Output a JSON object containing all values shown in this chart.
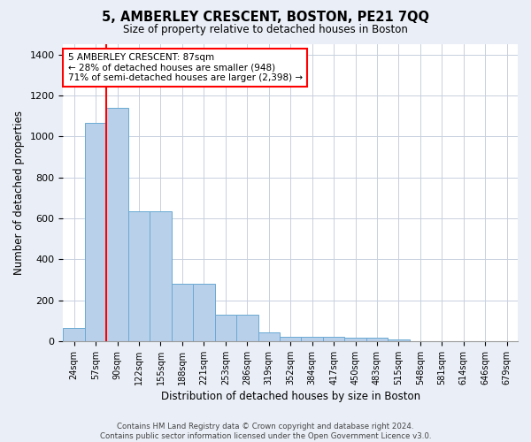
{
  "title": "5, AMBERLEY CRESCENT, BOSTON, PE21 7QQ",
  "subtitle": "Size of property relative to detached houses in Boston",
  "xlabel": "Distribution of detached houses by size in Boston",
  "ylabel": "Number of detached properties",
  "categories": [
    "24sqm",
    "57sqm",
    "90sqm",
    "122sqm",
    "155sqm",
    "188sqm",
    "221sqm",
    "253sqm",
    "286sqm",
    "319sqm",
    "352sqm",
    "384sqm",
    "417sqm",
    "450sqm",
    "483sqm",
    "515sqm",
    "548sqm",
    "581sqm",
    "614sqm",
    "646sqm",
    "679sqm"
  ],
  "values": [
    65,
    1065,
    1140,
    635,
    635,
    280,
    280,
    130,
    130,
    45,
    20,
    20,
    20,
    15,
    15,
    10,
    0,
    0,
    0,
    0,
    0
  ],
  "bar_color": "#b8d0ea",
  "bar_edge_color": "#6aaad4",
  "red_line_index": 1.5,
  "annotation_text": "5 AMBERLEY CRESCENT: 87sqm\n← 28% of detached houses are smaller (948)\n71% of semi-detached houses are larger (2,398) →",
  "annotation_box_color": "white",
  "annotation_box_edge_color": "red",
  "ylim": [
    0,
    1450
  ],
  "yticks": [
    0,
    200,
    400,
    600,
    800,
    1000,
    1200,
    1400
  ],
  "footer1": "Contains HM Land Registry data © Crown copyright and database right 2024.",
  "footer2": "Contains public sector information licensed under the Open Government Licence v3.0.",
  "bg_color": "#eaeff7",
  "plot_bg_color": "white",
  "grid_color": "#c8d0de",
  "fig_width": 6.0,
  "fig_height": 5.0,
  "dpi": 100
}
